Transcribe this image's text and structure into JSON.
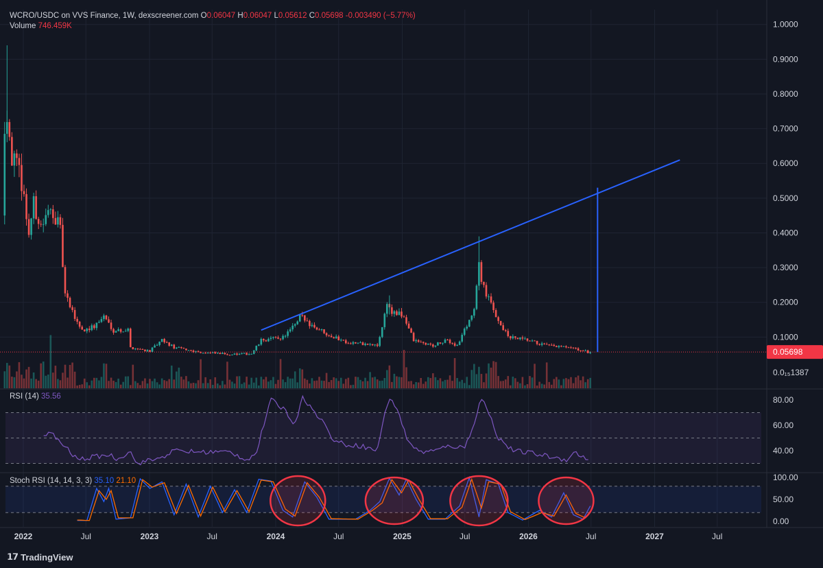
{
  "header": {
    "pair": "WCRO/USDC on VVS Finance, 1W, dexscreener.com",
    "o_label": "O",
    "o_value": "0.06047",
    "h_label": "H",
    "h_value": "0.06047",
    "l_label": "L",
    "l_value": "0.05612",
    "c_label": "C",
    "c_value": "0.05698",
    "change": "-0.003490 (−5.77%)",
    "volume_label": "Volume",
    "volume_value": "746.459K"
  },
  "rsi_header": {
    "label": "RSI (14)",
    "value": "35.56"
  },
  "stoch_header": {
    "label": "Stoch RSI (14, 14, 3, 3)",
    "k_value": "35.10",
    "d_value": "21.10"
  },
  "brand": "TradingView",
  "colors": {
    "bg": "#131722",
    "up": "#26a69a",
    "down": "#ef5350",
    "trendline": "#2962ff",
    "rsi": "#7e57c2",
    "stoch_k": "#2962ff",
    "stoch_d": "#ff6d00",
    "circle": "#f23645",
    "price_tag": "#f23645"
  },
  "chart_data": [
    {
      "type": "candlestick",
      "title": "WCRO/USDC on VVS Finance, 1W, dexscreener.com",
      "interval": "1W",
      "x_ticks": [
        "2022",
        "Jul",
        "2023",
        "Jul",
        "2024",
        "Jul",
        "2025",
        "Jul",
        "2026",
        "Jul",
        "2027",
        "Jul"
      ],
      "y_ticks": [
        "1.0000",
        "0.9000",
        "0.8000",
        "0.7000",
        "0.6000",
        "0.5000",
        "0.4000",
        "0.3000",
        "0.2000",
        "0.1000",
        "0.0₁₅1387"
      ],
      "ylim": [
        0.0,
        1.05
      ],
      "last_price": 0.05698,
      "last_price_label": "0.05698",
      "price_anchors": [
        [
          "2021-11-08",
          0.45
        ],
        [
          "2021-11-15",
          0.72
        ],
        [
          "2021-11-22",
          0.76
        ],
        [
          "2021-12-06",
          0.62
        ],
        [
          "2022-01-03",
          0.55
        ],
        [
          "2022-01-24",
          0.4
        ],
        [
          "2022-02-07",
          0.48
        ],
        [
          "2022-02-28",
          0.42
        ],
        [
          "2022-04-04",
          0.47
        ],
        [
          "2022-04-25",
          0.4
        ],
        [
          "2022-05-09",
          0.22
        ],
        [
          "2022-05-30",
          0.17
        ],
        [
          "2022-06-27",
          0.12
        ],
        [
          "2022-08-01",
          0.13
        ],
        [
          "2022-08-29",
          0.16
        ],
        [
          "2022-09-26",
          0.12
        ],
        [
          "2022-11-07",
          0.12
        ],
        [
          "2022-11-14",
          0.07
        ],
        [
          "2023-01-09",
          0.06
        ],
        [
          "2023-02-13",
          0.09
        ],
        [
          "2023-03-20",
          0.07
        ],
        [
          "2023-06-12",
          0.055
        ],
        [
          "2023-09-11",
          0.05
        ],
        [
          "2023-10-30",
          0.052
        ],
        [
          "2023-11-27",
          0.09
        ],
        [
          "2024-01-29",
          0.1
        ],
        [
          "2024-03-11",
          0.14
        ],
        [
          "2024-03-18",
          0.16
        ],
        [
          "2024-04-29",
          0.13
        ],
        [
          "2024-06-24",
          0.1
        ],
        [
          "2024-08-05",
          0.085
        ],
        [
          "2024-10-28",
          0.075
        ],
        [
          "2024-11-11",
          0.13
        ],
        [
          "2024-11-25",
          0.2
        ],
        [
          "2024-12-09",
          0.17
        ],
        [
          "2025-01-13",
          0.16
        ],
        [
          "2025-02-10",
          0.09
        ],
        [
          "2025-04-07",
          0.075
        ],
        [
          "2025-05-19",
          0.09
        ],
        [
          "2025-06-16",
          0.075
        ],
        [
          "2025-07-21",
          0.15
        ],
        [
          "2025-08-04",
          0.18
        ],
        [
          "2025-08-18",
          0.3
        ],
        [
          "2025-09-08",
          0.22
        ],
        [
          "2025-10-13",
          0.15
        ],
        [
          "2025-11-10",
          0.1
        ],
        [
          "2026-01-05",
          0.09
        ],
        [
          "2026-03-02",
          0.075
        ],
        [
          "2026-04-27",
          0.07
        ],
        [
          "2026-06-08",
          0.062
        ],
        [
          "2026-06-29",
          0.057
        ]
      ],
      "trendline": {
        "from": [
          "2023-11-20",
          0.12
        ],
        "to": [
          "2027-03-15",
          0.61
        ],
        "color": "#2962ff"
      },
      "vertical_projection": {
        "date": "2026-07-20",
        "from": 0.057,
        "to": 0.53,
        "color": "#2962ff"
      }
    },
    {
      "type": "line",
      "title": "RSI (14)",
      "ylim": [
        25,
        88
      ],
      "y_ticks": [
        "80.00",
        "60.00",
        "40.00"
      ],
      "bands": [
        30,
        50,
        70
      ],
      "series": [
        {
          "name": "RSI (14)",
          "color": "#7e57c2",
          "anchors": [
            [
              "2022-03-01",
              52
            ],
            [
              "2022-03-21",
              54
            ],
            [
              "2022-04-25",
              45
            ],
            [
              "2022-06-06",
              33
            ],
            [
              "2022-07-25",
              35
            ],
            [
              "2022-09-05",
              37
            ],
            [
              "2022-10-03",
              33
            ],
            [
              "2022-11-07",
              41
            ],
            [
              "2022-11-21",
              30
            ],
            [
              "2023-01-30",
              34
            ],
            [
              "2023-03-13",
              40
            ],
            [
              "2023-05-22",
              39
            ],
            [
              "2023-08-21",
              39
            ],
            [
              "2023-10-09",
              33
            ],
            [
              "2023-11-06",
              38
            ],
            [
              "2023-11-27",
              60
            ],
            [
              "2023-12-18",
              80
            ],
            [
              "2024-01-29",
              72
            ],
            [
              "2024-02-26",
              60
            ],
            [
              "2024-03-18",
              84
            ],
            [
              "2024-04-15",
              72
            ],
            [
              "2024-05-13",
              65
            ],
            [
              "2024-06-10",
              50
            ],
            [
              "2024-07-15",
              45
            ],
            [
              "2024-09-02",
              44
            ],
            [
              "2024-10-21",
              40
            ],
            [
              "2024-11-11",
              70
            ],
            [
              "2024-11-25",
              80
            ],
            [
              "2024-12-16",
              75
            ],
            [
              "2025-01-13",
              50
            ],
            [
              "2025-02-17",
              39
            ],
            [
              "2025-04-07",
              40
            ],
            [
              "2025-05-19",
              44
            ],
            [
              "2025-06-30",
              42
            ],
            [
              "2025-07-28",
              62
            ],
            [
              "2025-08-18",
              82
            ],
            [
              "2025-09-08",
              70
            ],
            [
              "2025-10-06",
              50
            ],
            [
              "2025-11-17",
              40
            ],
            [
              "2026-01-12",
              38
            ],
            [
              "2026-03-09",
              35
            ],
            [
              "2026-04-20",
              33
            ],
            [
              "2026-05-18",
              39
            ],
            [
              "2026-06-15",
              33
            ],
            [
              "2026-06-29",
              36
            ]
          ]
        }
      ]
    },
    {
      "type": "line",
      "title": "Stoch RSI (14, 14, 3, 3)",
      "ylim": [
        -5,
        105
      ],
      "y_ticks": [
        "100.00",
        "50.00",
        "0.00"
      ],
      "bands": [
        20,
        80
      ],
      "series": [
        {
          "name": "%K",
          "color": "#2962ff",
          "anchors": [
            [
              "2022-06-06",
              2
            ],
            [
              "2022-07-04",
              2
            ],
            [
              "2022-08-01",
              75
            ],
            [
              "2022-08-22",
              45
            ],
            [
              "2022-09-05",
              75
            ],
            [
              "2022-09-26",
              5
            ],
            [
              "2022-11-07",
              8
            ],
            [
              "2022-12-05",
              97
            ],
            [
              "2023-01-02",
              75
            ],
            [
              "2023-02-06",
              90
            ],
            [
              "2023-03-13",
              15
            ],
            [
              "2023-04-17",
              85
            ],
            [
              "2023-05-22",
              10
            ],
            [
              "2023-06-26",
              80
            ],
            [
              "2023-07-31",
              20
            ],
            [
              "2023-09-04",
              72
            ],
            [
              "2023-10-09",
              20
            ],
            [
              "2023-11-13",
              96
            ],
            [
              "2023-12-18",
              92
            ],
            [
              "2024-01-22",
              25
            ],
            [
              "2024-02-19",
              10
            ],
            [
              "2024-03-25",
              90
            ],
            [
              "2024-04-29",
              55
            ],
            [
              "2024-06-03",
              5
            ],
            [
              "2024-08-19",
              5
            ],
            [
              "2024-09-30",
              25
            ],
            [
              "2024-10-28",
              45
            ],
            [
              "2024-11-25",
              98
            ],
            [
              "2024-12-23",
              60
            ],
            [
              "2025-01-13",
              96
            ],
            [
              "2025-02-10",
              50
            ],
            [
              "2025-03-17",
              5
            ],
            [
              "2025-05-05",
              5
            ],
            [
              "2025-06-16",
              35
            ],
            [
              "2025-07-14",
              100
            ],
            [
              "2025-08-11",
              10
            ],
            [
              "2025-09-01",
              95
            ],
            [
              "2025-10-06",
              85
            ],
            [
              "2025-11-03",
              20
            ],
            [
              "2025-12-15",
              3
            ],
            [
              "2026-02-02",
              25
            ],
            [
              "2026-03-09",
              10
            ],
            [
              "2026-04-13",
              65
            ],
            [
              "2026-05-11",
              15
            ],
            [
              "2026-06-08",
              5
            ],
            [
              "2026-06-29",
              35
            ]
          ]
        },
        {
          "name": "%D",
          "color": "#ff6d00",
          "anchors": [
            [
              "2022-06-06",
              3
            ],
            [
              "2022-07-11",
              2
            ],
            [
              "2022-08-08",
              70
            ],
            [
              "2022-08-29",
              50
            ],
            [
              "2022-09-12",
              70
            ],
            [
              "2022-10-03",
              8
            ],
            [
              "2022-11-14",
              8
            ],
            [
              "2022-12-12",
              95
            ],
            [
              "2023-01-09",
              78
            ],
            [
              "2023-02-13",
              88
            ],
            [
              "2023-03-20",
              18
            ],
            [
              "2023-04-24",
              82
            ],
            [
              "2023-05-29",
              12
            ],
            [
              "2023-07-03",
              78
            ],
            [
              "2023-08-07",
              22
            ],
            [
              "2023-09-11",
              70
            ],
            [
              "2023-10-16",
              22
            ],
            [
              "2023-11-20",
              94
            ],
            [
              "2023-12-25",
              90
            ],
            [
              "2024-01-29",
              28
            ],
            [
              "2024-02-26",
              12
            ],
            [
              "2024-04-01",
              88
            ],
            [
              "2024-05-06",
              55
            ],
            [
              "2024-06-10",
              6
            ],
            [
              "2024-08-26",
              5
            ],
            [
              "2024-10-07",
              25
            ],
            [
              "2024-11-04",
              42
            ],
            [
              "2024-12-02",
              95
            ],
            [
              "2024-12-30",
              65
            ],
            [
              "2025-01-20",
              94
            ],
            [
              "2025-02-17",
              52
            ],
            [
              "2025-03-24",
              6
            ],
            [
              "2025-05-12",
              6
            ],
            [
              "2025-06-23",
              32
            ],
            [
              "2025-07-21",
              96
            ],
            [
              "2025-08-18",
              30
            ],
            [
              "2025-09-08",
              90
            ],
            [
              "2025-10-13",
              85
            ],
            [
              "2025-11-10",
              22
            ],
            [
              "2025-12-22",
              4
            ],
            [
              "2026-02-09",
              20
            ],
            [
              "2026-03-16",
              12
            ],
            [
              "2026-04-20",
              60
            ],
            [
              "2026-05-18",
              18
            ],
            [
              "2026-06-15",
              8
            ],
            [
              "2026-06-29",
              21
            ]
          ]
        }
      ],
      "highlight_circles_around": [
        "2024-03-11",
        "2024-12-09",
        "2025-08-11",
        "2026-04-20"
      ]
    }
  ]
}
